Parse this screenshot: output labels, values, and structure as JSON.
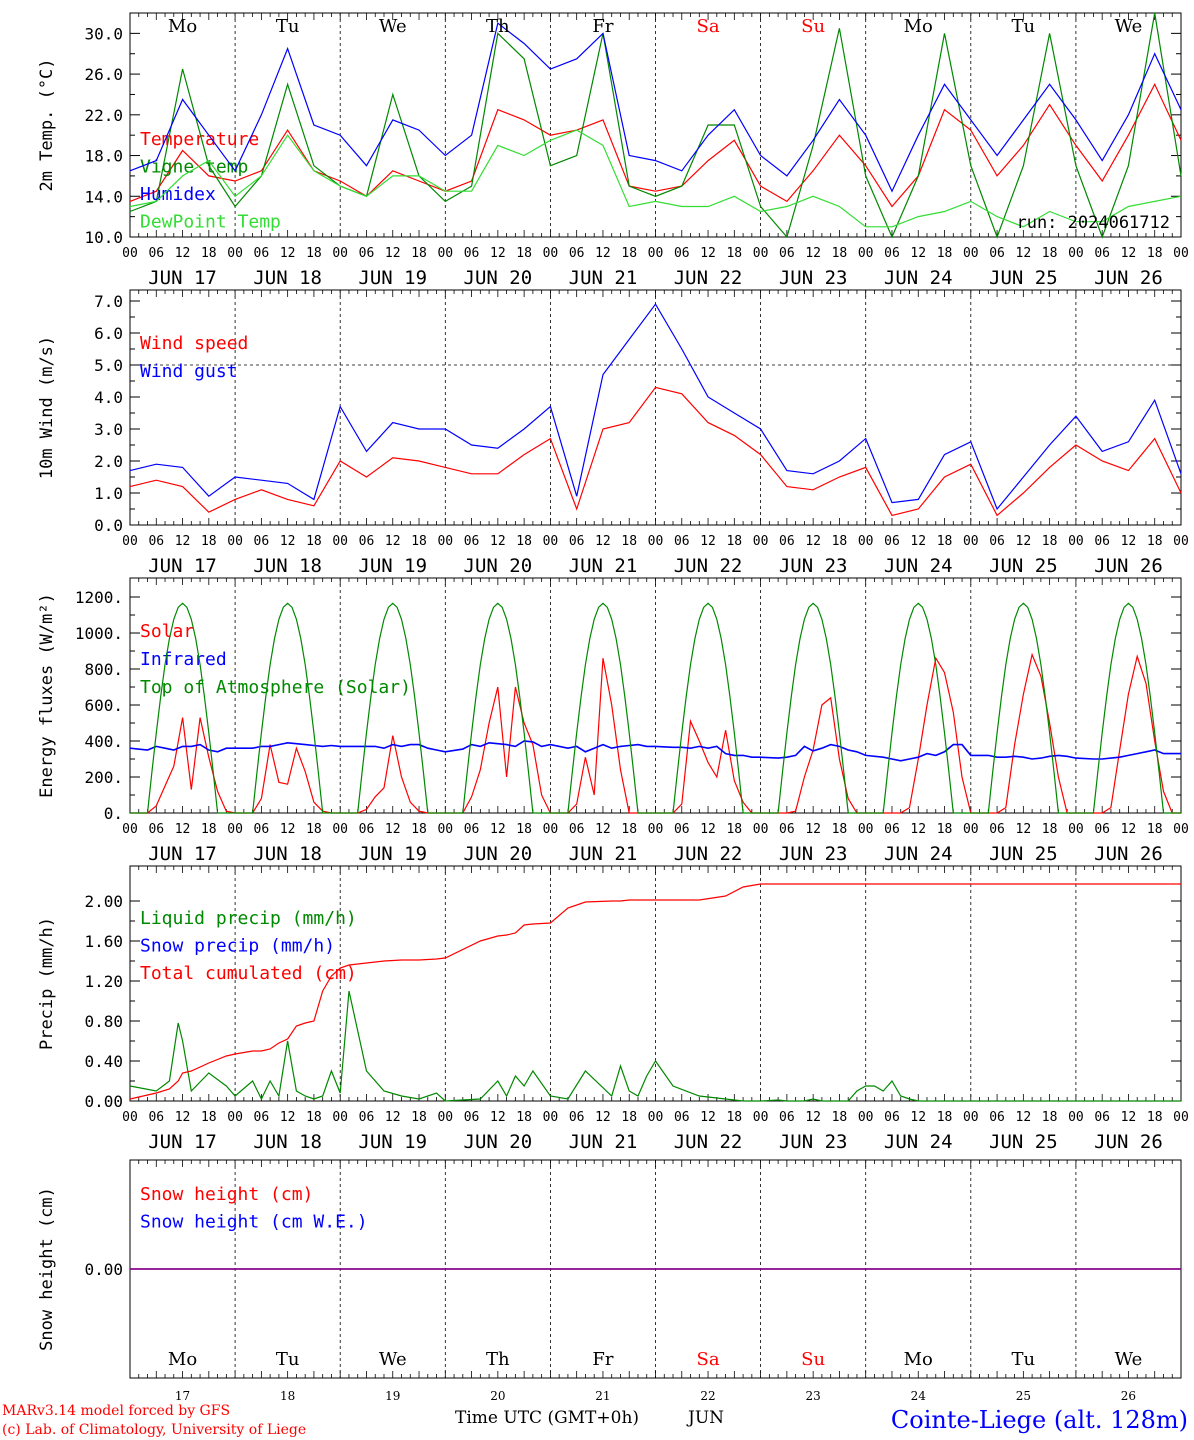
{
  "colors": {
    "red": "#ff0000",
    "green": "#008800",
    "lightgreen": "#33dd33",
    "blue": "#0000ff",
    "purple": "#880088",
    "black": "#000000"
  },
  "x_axis": {
    "hour_labels": [
      "00",
      "06",
      "12",
      "18"
    ],
    "day_labels": [
      "JUN 17",
      "JUN 18",
      "JUN 19",
      "JUN 20",
      "JUN 21",
      "JUN 22",
      "JUN 23",
      "JUN 24",
      "JUN 25",
      "JUN 26"
    ],
    "final_label": "00",
    "weekdays": [
      "Mo",
      "Tu",
      "We",
      "Th",
      "Fr",
      "Sa",
      "Su",
      "Mo",
      "Tu",
      "We"
    ],
    "weekend_index": [
      5,
      6
    ],
    "bottom_days": [
      "17",
      "18",
      "19",
      "20",
      "21",
      "22",
      "23",
      "24",
      "25",
      "26"
    ],
    "bottom_title": "Time UTC (GMT+0h)",
    "bottom_month": "JUN"
  },
  "footer": {
    "credit1": "MARv3.14 model forced by GFS",
    "credit2": "(c) Lab. of Climatology, University of Liege",
    "station": "Cointe-Liege (alt. 128m)"
  },
  "chart_data": [
    {
      "type": "line",
      "ylabel": "2m Temp. (°C)",
      "ylim": [
        10,
        32
      ],
      "yticks": [
        "10.0",
        "14.0",
        "18.0",
        "22.0",
        "26.0",
        "30.0"
      ],
      "annotation": "run: 2024061712",
      "x_hours": [
        0,
        6,
        12,
        18,
        24,
        30,
        36,
        42,
        48,
        54,
        60,
        66,
        72,
        78,
        84,
        90,
        96,
        102,
        108,
        114,
        120,
        126,
        132,
        138,
        144,
        150,
        156,
        162,
        168,
        174,
        180,
        186,
        192,
        198,
        204,
        210,
        216,
        222,
        228,
        234,
        240
      ],
      "series": [
        {
          "name": "Temperature",
          "color": "red",
          "values": [
            13.5,
            14.5,
            18.5,
            16,
            15.5,
            16.5,
            20.5,
            16.5,
            15.5,
            14,
            16.5,
            15.5,
            14.5,
            15.5,
            22.5,
            21.5,
            20,
            20.5,
            21.5,
            15,
            14.5,
            15,
            17.5,
            19.5,
            15,
            13.5,
            16.5,
            20,
            17,
            13,
            16,
            22.5,
            20.5,
            16,
            19,
            23,
            19,
            15.5,
            20,
            25,
            19.5
          ]
        },
        {
          "name": "Vigne temp",
          "color": "green",
          "values": [
            12.5,
            13.5,
            26.5,
            17,
            13,
            16,
            25,
            17,
            15,
            14,
            24,
            16,
            13.5,
            15,
            30,
            27.5,
            17,
            18,
            30,
            15,
            14,
            15,
            21,
            21,
            13,
            10,
            19,
            30.5,
            16,
            10,
            16,
            30,
            17,
            10,
            17,
            30,
            17,
            10,
            17,
            33,
            16
          ]
        },
        {
          "name": "Humidex",
          "color": "blue",
          "values": [
            16.5,
            17.5,
            23.5,
            20,
            16.5,
            22,
            28.5,
            21,
            20,
            17,
            21.5,
            20.5,
            18,
            20,
            31,
            29,
            26.5,
            27.5,
            30,
            18,
            17.5,
            16.5,
            20,
            22.5,
            18,
            16,
            19.5,
            23.5,
            20,
            14.5,
            20,
            25,
            21.5,
            18,
            21.5,
            25,
            21.5,
            17.5,
            22,
            28,
            22.5
          ]
        },
        {
          "name": "DewPoint Temp",
          "color": "lightgreen",
          "values": [
            13,
            13.5,
            16,
            17.5,
            14,
            16,
            20,
            16.5,
            15,
            14,
            16,
            16,
            14.5,
            14.5,
            19,
            18,
            19.5,
            20.5,
            19,
            13,
            13.5,
            13,
            13,
            14,
            12.5,
            13,
            14,
            13,
            11,
            11,
            12,
            12.5,
            13.5,
            12,
            11,
            12.5,
            11.5,
            11.5,
            13,
            13.5,
            14
          ]
        }
      ]
    },
    {
      "type": "line",
      "ylabel": "10m Wind (m/s)",
      "ylim": [
        0,
        7
      ],
      "yticks": [
        "0.0",
        "1.0",
        "2.0",
        "3.0",
        "4.0",
        "5.0",
        "6.0",
        "7.0"
      ],
      "ref_line": 5,
      "x_hours": [
        0,
        6,
        12,
        18,
        24,
        30,
        36,
        42,
        48,
        54,
        60,
        66,
        72,
        78,
        84,
        90,
        96,
        102,
        108,
        114,
        120,
        126,
        132,
        138,
        144,
        150,
        156,
        162,
        168,
        174,
        180,
        186,
        192,
        198,
        204,
        210,
        216,
        222,
        228,
        234,
        240
      ],
      "series": [
        {
          "name": "Wind speed",
          "color": "red",
          "values": [
            1.2,
            1.4,
            1.2,
            0.4,
            0.8,
            1.1,
            0.8,
            0.6,
            2,
            1.5,
            2.1,
            2,
            1.8,
            1.6,
            1.6,
            2.2,
            2.7,
            0.5,
            3,
            3.2,
            4.3,
            4.1,
            3.2,
            2.8,
            2.2,
            1.2,
            1.1,
            1.5,
            1.8,
            0.3,
            0.5,
            1.5,
            1.9,
            0.3,
            1,
            1.8,
            2.5,
            2,
            1.7,
            2.7,
            1
          ]
        },
        {
          "name": "Wind gust",
          "color": "blue",
          "values": [
            1.7,
            1.9,
            1.8,
            0.9,
            1.5,
            1.4,
            1.3,
            0.8,
            3.7,
            2.3,
            3.2,
            3,
            3,
            2.5,
            2.4,
            3,
            3.7,
            0.9,
            4.7,
            5.8,
            6.9,
            5.5,
            4,
            3.5,
            3,
            1.7,
            1.6,
            2,
            2.7,
            0.7,
            0.8,
            2.2,
            2.6,
            0.5,
            1.5,
            2.5,
            3.4,
            2.3,
            2.6,
            3.9,
            1.6
          ]
        }
      ]
    },
    {
      "type": "line",
      "ylabel": "Energy fluxes (W/m²)",
      "ylim": [
        0,
        1200
      ],
      "yticks": [
        "0.",
        "200.",
        "400.",
        "600.",
        "800.",
        "1000.",
        "1200."
      ],
      "x_hours": [
        0,
        4,
        6,
        8,
        10,
        12,
        14,
        16,
        18,
        20,
        22,
        24,
        28,
        30,
        32,
        34,
        36,
        38,
        40,
        42,
        44,
        46,
        48,
        52,
        54,
        56,
        58,
        60,
        62,
        64,
        66,
        68,
        70,
        72,
        76,
        78,
        80,
        82,
        84,
        86,
        88,
        90,
        92,
        94,
        96,
        100,
        102,
        104,
        106,
        108,
        110,
        112,
        114,
        116,
        118,
        120,
        124,
        126,
        128,
        130,
        132,
        134,
        136,
        138,
        140,
        142,
        144,
        148,
        150,
        152,
        154,
        156,
        158,
        160,
        162,
        164,
        166,
        168,
        172,
        174,
        176,
        178,
        180,
        182,
        184,
        186,
        188,
        190,
        192,
        196,
        198,
        200,
        202,
        204,
        206,
        208,
        210,
        212,
        214,
        216,
        220,
        222,
        224,
        226,
        228,
        230,
        232,
        234,
        236,
        238,
        240
      ],
      "series": [
        {
          "name": "Solar",
          "color": "red",
          "values": [
            0,
            0,
            40,
            150,
            260,
            530,
            130,
            530,
            310,
            120,
            10,
            0,
            0,
            80,
            380,
            170,
            160,
            360,
            230,
            60,
            10,
            0,
            0,
            0,
            20,
            90,
            140,
            430,
            200,
            60,
            10,
            0,
            0,
            0,
            0,
            90,
            240,
            500,
            700,
            200,
            700,
            500,
            380,
            100,
            0,
            0,
            50,
            310,
            100,
            860,
            600,
            240,
            0,
            0,
            0,
            0,
            0,
            50,
            510,
            400,
            280,
            200,
            460,
            180,
            60,
            0,
            0,
            0,
            0,
            10,
            200,
            350,
            600,
            640,
            300,
            80,
            0,
            0,
            0,
            0,
            0,
            30,
            300,
            600,
            860,
            780,
            560,
            200,
            0,
            0,
            0,
            30,
            380,
            660,
            880,
            760,
            500,
            200,
            0,
            0,
            0,
            0,
            30,
            350,
            660,
            870,
            720,
            400,
            120,
            0,
            0
          ]
        },
        {
          "name": "Infrared",
          "color": "blue",
          "values": [
            360,
            350,
            370,
            360,
            350,
            370,
            370,
            380,
            350,
            340,
            360,
            360,
            360,
            370,
            370,
            380,
            390,
            385,
            380,
            375,
            370,
            375,
            370,
            370,
            370,
            370,
            360,
            380,
            370,
            380,
            380,
            360,
            350,
            340,
            355,
            380,
            370,
            390,
            385,
            380,
            370,
            400,
            395,
            370,
            380,
            360,
            370,
            340,
            360,
            380,
            360,
            370,
            375,
            380,
            370,
            370,
            365,
            365,
            360,
            370,
            360,
            370,
            330,
            320,
            320,
            310,
            310,
            305,
            310,
            320,
            370,
            345,
            360,
            380,
            370,
            350,
            340,
            320,
            310,
            300,
            290,
            300,
            310,
            330,
            320,
            340,
            380,
            380,
            320,
            320,
            310,
            310,
            315,
            310,
            300,
            305,
            315,
            320,
            315,
            305,
            300,
            300,
            305,
            310,
            320,
            330,
            340,
            350,
            330,
            330,
            330
          ]
        },
        {
          "name": "Top of Atmosphere (Solar)",
          "color": "green",
          "curve": "daily",
          "peak": 1165,
          "rise_hour": 4,
          "set_hour": 20
        }
      ]
    },
    {
      "type": "line",
      "ylabel": "Precip (mm/h)",
      "ylim": [
        0,
        2.2
      ],
      "yticks": [
        "0.00",
        "0.40",
        "0.80",
        "1.20",
        "1.60",
        "2.00"
      ],
      "x_hours": [
        0,
        6,
        9,
        11,
        12,
        14,
        18,
        22,
        24,
        28,
        30,
        32,
        34,
        36,
        38,
        40,
        42,
        44,
        46,
        48,
        50,
        54,
        58,
        62,
        66,
        70,
        72,
        80,
        84,
        86,
        88,
        90,
        92,
        96,
        100,
        104,
        110,
        112,
        114,
        116,
        118,
        120,
        124,
        130,
        136,
        140,
        144,
        148,
        150,
        152,
        154,
        156,
        158,
        160,
        162,
        164,
        166,
        168,
        170,
        172,
        174,
        176,
        178,
        180,
        192,
        204,
        216,
        228,
        240
      ],
      "series": [
        {
          "name": "Liquid precip (mm/h)",
          "color": "green",
          "values": [
            0.15,
            0.1,
            0.2,
            0.78,
            0.6,
            0.1,
            0.28,
            0.15,
            0.05,
            0.2,
            0.02,
            0.2,
            0.05,
            0.6,
            0.1,
            0.05,
            0.02,
            0.05,
            0.3,
            0.08,
            1.1,
            0.3,
            0.1,
            0.05,
            0.02,
            0.08,
            0,
            0.02,
            0.2,
            0.05,
            0.25,
            0.15,
            0.3,
            0.05,
            0.02,
            0.3,
            0.05,
            0.35,
            0.1,
            0.05,
            0.25,
            0.4,
            0.15,
            0.05,
            0.02,
            0,
            0,
            0.01,
            0,
            0,
            0,
            0.02,
            0,
            0,
            0,
            0,
            0.1,
            0.15,
            0.15,
            0.1,
            0.2,
            0.05,
            0.02,
            0,
            0,
            0,
            0,
            0,
            0
          ]
        },
        {
          "name": "Snow precip (mm/h)",
          "color": "blue",
          "values": []
        },
        {
          "name": "Total cumulated (cm)",
          "color": "red",
          "values": [
            0.02,
            0.08,
            0.12,
            0.2,
            0.28,
            0.3,
            0.38,
            0.45,
            0.47,
            0.5,
            0.5,
            0.52,
            0.58,
            0.62,
            0.75,
            0.78,
            0.8,
            1.1,
            1.25,
            1.33,
            1.36,
            1.38,
            1.4,
            1.41,
            1.41,
            1.42,
            1.43,
            1.6,
            1.65,
            1.66,
            1.68,
            1.76,
            1.77,
            1.78,
            1.93,
            1.99,
            2,
            2,
            2.01,
            2.01,
            2.01,
            2.01,
            2.01,
            2.01,
            2.05,
            2.14,
            2.17,
            2.17,
            2.17,
            2.17,
            2.17,
            2.17,
            2.17,
            2.17,
            2.17,
            2.17,
            2.17,
            2.17,
            2.17,
            2.17,
            2.17,
            2.17,
            2.17,
            2.17,
            2.17,
            2.17,
            2.17,
            2.17,
            2.17
          ]
        }
      ]
    },
    {
      "type": "line",
      "ylabel": "Snow height (cm)",
      "ylim": [
        -1,
        1
      ],
      "yticks": [
        "0.00"
      ],
      "x_hours": [
        0,
        240
      ],
      "series": [
        {
          "name": "Snow height (cm)",
          "color": "red",
          "values": [
            0,
            0
          ]
        },
        {
          "name": "Snow height (cm W.E.)",
          "color": "blue",
          "values": [
            0,
            0
          ]
        }
      ]
    }
  ]
}
